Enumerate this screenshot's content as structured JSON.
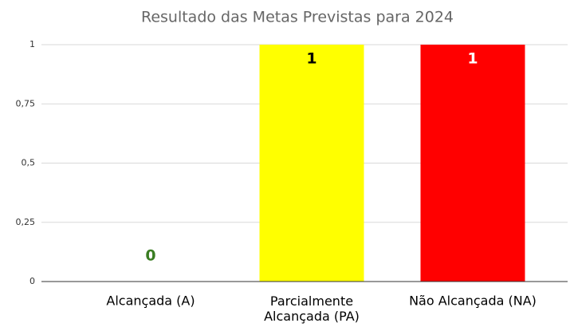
{
  "chart_data": {
    "type": "bar",
    "title": "Resultado das Metas Previstas para 2024",
    "categories": [
      "Alcançada (A)",
      "Parcialmente Alcançada (PA)",
      "Não Alcançada (NA)"
    ],
    "values": [
      0,
      1,
      1
    ],
    "colors": [
      "#00b050",
      "#ffff00",
      "#ff0000"
    ],
    "label_colors": [
      "#3a7d22",
      "#000000",
      "#ffffff"
    ],
    "ylim": [
      0,
      1
    ],
    "yticks": [
      0,
      {
        "value": 0.25,
        "label": "0,25"
      },
      {
        "value": 0.5,
        "label": "0,5"
      },
      {
        "value": 0.75,
        "label": "0,75"
      },
      1
    ],
    "grid": true
  }
}
